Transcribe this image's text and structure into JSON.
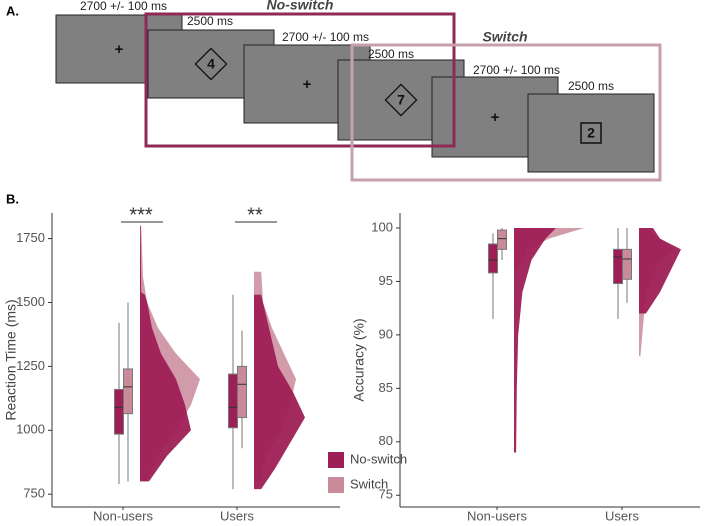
{
  "panel_a": {
    "label": "A.",
    "screens": [
      {
        "timing": "2700 +/- 100 ms",
        "symbol": "+"
      },
      {
        "timing": "2500 ms",
        "symbol": "4"
      },
      {
        "timing": "2700 +/- 100 ms",
        "symbol": "+"
      },
      {
        "timing": "2500 ms",
        "symbol": "7"
      },
      {
        "timing": "2700 +/- 100 ms",
        "symbol": "+"
      },
      {
        "timing": "2500 ms",
        "symbol": "2"
      }
    ],
    "groups": [
      {
        "title": "No-switch",
        "color": "#8e2a55"
      },
      {
        "title": "Switch",
        "color": "#c7a0aa"
      }
    ]
  },
  "panel_b": {
    "label": "B."
  },
  "chart_data": [
    {
      "type": "raincloud",
      "ylabel": "Reaction Time (ms)",
      "categories": [
        "Non-users",
        "Users"
      ],
      "ylim": [
        700,
        1850
      ],
      "yticks": [
        750,
        1000,
        1250,
        1500,
        1750
      ],
      "legend": "bottom-right",
      "annotations": [
        "***",
        "**"
      ],
      "series": [
        {
          "name": "No-switch",
          "color": "#9e1f55",
          "boxes": [
            {
              "whislo": 790,
              "q1": 985,
              "med": 1090,
              "q3": 1160,
              "whishi": 1420
            },
            {
              "whislo": 770,
              "q1": 1010,
              "med": 1090,
              "q3": 1220,
              "whishi": 1530
            }
          ],
          "density": [
            {
              "y": [
                800,
                900,
                1000,
                1100,
                1200,
                1300,
                1400,
                1500,
                1530,
                1540,
                1800
              ],
              "width": [
                0.15,
                0.45,
                0.85,
                0.75,
                0.6,
                0.35,
                0.2,
                0.12,
                0.08,
                0.02,
                0.01
              ]
            },
            {
              "y": [
                770,
                850,
                950,
                1050,
                1150,
                1250,
                1350,
                1450,
                1530
              ],
              "width": [
                0.12,
                0.35,
                0.6,
                0.85,
                0.65,
                0.4,
                0.3,
                0.2,
                0.12
              ]
            }
          ]
        },
        {
          "name": "Switch",
          "color": "#c98a9a",
          "boxes": [
            {
              "whislo": 800,
              "q1": 1065,
              "med": 1170,
              "q3": 1240,
              "whishi": 1500
            },
            {
              "whislo": 930,
              "q1": 1050,
              "med": 1180,
              "q3": 1250,
              "whishi": 1390
            }
          ],
          "density": [
            {
              "y": [
                800,
                900,
                1000,
                1100,
                1200,
                1300,
                1400,
                1500,
                1600,
                1800
              ],
              "width": [
                0.1,
                0.3,
                0.6,
                0.85,
                1.0,
                0.6,
                0.3,
                0.12,
                0.05,
                0.02
              ]
            },
            {
              "y": [
                800,
                900,
                1000,
                1100,
                1200,
                1300,
                1400,
                1500,
                1620
              ],
              "width": [
                0.1,
                0.2,
                0.45,
                0.6,
                0.7,
                0.5,
                0.3,
                0.15,
                0.12
              ]
            }
          ]
        }
      ]
    },
    {
      "type": "raincloud",
      "ylabel": "Accuracy (%)",
      "categories": [
        "Non-users",
        "Users"
      ],
      "ylim": [
        73.9,
        101.4
      ],
      "yticks": [
        75,
        80,
        85,
        90,
        95,
        100
      ],
      "series": [
        {
          "color": "#9e1f55",
          "boxes": [
            {
              "whislo": 91.5,
              "q1": 95.8,
              "med": 97,
              "q3": 98.5,
              "whishi": 99.5
            },
            {
              "whislo": 91.5,
              "q1": 94.8,
              "med": 97.3,
              "q3": 98,
              "whishi": 100
            }
          ],
          "density": [
            {
              "y": [
                79,
                85,
                90,
                94,
                97,
                99,
                100
              ],
              "width": [
                0.03,
                0.04,
                0.06,
                0.12,
                0.25,
                0.45,
                0.6
              ]
            },
            {
              "y": [
                92,
                94,
                96,
                98,
                99,
                100
              ],
              "width": [
                0.1,
                0.3,
                0.45,
                0.6,
                0.3,
                0.2
              ]
            }
          ]
        },
        {
          "color": "#c98a9a",
          "boxes": [
            {
              "whislo": 97,
              "q1": 98,
              "med": 99,
              "q3": 99.8,
              "whishi": 100
            },
            {
              "whislo": 93,
              "q1": 95.2,
              "med": 97.1,
              "q3": 98,
              "whishi": 100
            }
          ],
          "density": [
            {
              "y": [
                96,
                98,
                99,
                100
              ],
              "width": [
                0.05,
                0.2,
                0.5,
                1.0
              ]
            },
            {
              "y": [
                88,
                94,
                97,
                98,
                99,
                100
              ],
              "width": [
                0.02,
                0.1,
                0.3,
                0.5,
                0.3,
                0.1
              ]
            }
          ]
        }
      ]
    }
  ]
}
